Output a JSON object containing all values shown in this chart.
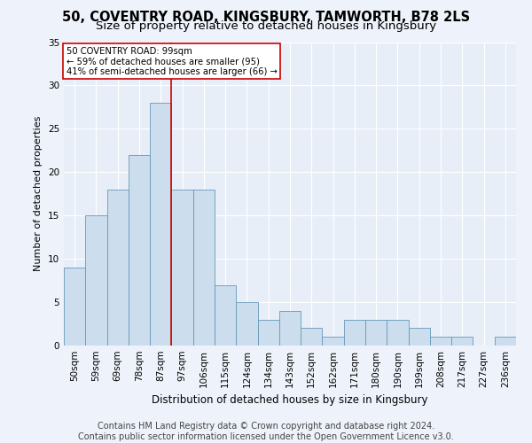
{
  "title1": "50, COVENTRY ROAD, KINGSBURY, TAMWORTH, B78 2LS",
  "title2": "Size of property relative to detached houses in Kingsbury",
  "xlabel": "Distribution of detached houses by size in Kingsbury",
  "ylabel": "Number of detached properties",
  "categories": [
    "50sqm",
    "59sqm",
    "69sqm",
    "78sqm",
    "87sqm",
    "97sqm",
    "106sqm",
    "115sqm",
    "124sqm",
    "134sqm",
    "143sqm",
    "152sqm",
    "162sqm",
    "171sqm",
    "180sqm",
    "190sqm",
    "199sqm",
    "208sqm",
    "217sqm",
    "227sqm",
    "236sqm"
  ],
  "values": [
    9,
    15,
    18,
    22,
    28,
    18,
    18,
    7,
    5,
    3,
    4,
    2,
    1,
    3,
    3,
    3,
    2,
    1,
    1,
    0,
    1
  ],
  "bar_color": "#ccdded",
  "bar_edge_color": "#6699bb",
  "vline_x": 4.5,
  "vline_color": "#cc0000",
  "annotation_line1": "50 COVENTRY ROAD: 99sqm",
  "annotation_line2": "← 59% of detached houses are smaller (95)",
  "annotation_line3": "41% of semi-detached houses are larger (66) →",
  "annotation_box_color": "#ffffff",
  "annotation_box_edge": "#cc0000",
  "footer1": "Contains HM Land Registry data © Crown copyright and database right 2024.",
  "footer2": "Contains public sector information licensed under the Open Government Licence v3.0.",
  "ylim": [
    0,
    35
  ],
  "yticks": [
    0,
    5,
    10,
    15,
    20,
    25,
    30,
    35
  ],
  "bg_color": "#e8eef8",
  "fig_bg_color": "#eef2fa",
  "grid_color": "#ffffff",
  "title1_fontsize": 10.5,
  "title2_fontsize": 9.5,
  "xlabel_fontsize": 8.5,
  "ylabel_fontsize": 8,
  "tick_fontsize": 7.5,
  "footer_fontsize": 7
}
